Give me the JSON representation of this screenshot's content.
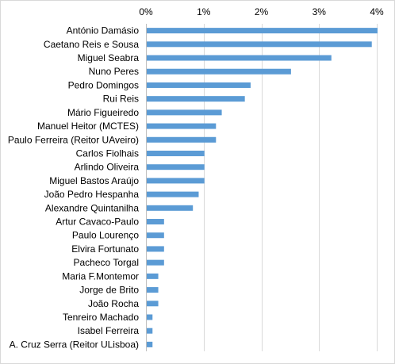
{
  "chart_data": {
    "type": "bar",
    "orientation": "horizontal",
    "title": "",
    "xlabel": "",
    "ylabel": "",
    "x_axis_position": "top",
    "xlim": [
      0,
      0.04
    ],
    "x_ticks": [
      0,
      0.01,
      0.02,
      0.03,
      0.04
    ],
    "x_tick_labels": [
      "0%",
      "1%",
      "2%",
      "3%",
      "4%"
    ],
    "grid": true,
    "legend": "none",
    "bar_color": "#5b9bd5",
    "categories": [
      "António Damásio",
      "Caetano Reis e Sousa",
      "Miguel Seabra",
      "Nuno Peres",
      "Pedro Domingos",
      "Rui Reis",
      "Mário Figueiredo",
      "Manuel Heitor (MCTES)",
      "Paulo Ferreira (Reitor UAveiro)",
      "Carlos Fiolhais",
      "Arlindo Oliveira",
      "Miguel Bastos Araújo",
      "João Pedro Hespanha",
      "Alexandre Quintanilha",
      "Artur Cavaco-Paulo",
      "Paulo Lourenço",
      "Elvira Fortunato",
      "Pacheco Torgal",
      "Maria F.Montemor",
      "Jorge de Brito",
      "João Rocha",
      "Tenreiro Machado",
      "Isabel Ferreira",
      "A. Cruz Serra (Reitor ULisboa)"
    ],
    "values": [
      0.04,
      0.039,
      0.032,
      0.025,
      0.018,
      0.017,
      0.013,
      0.012,
      0.012,
      0.01,
      0.01,
      0.01,
      0.009,
      0.008,
      0.003,
      0.003,
      0.003,
      0.003,
      0.002,
      0.002,
      0.002,
      0.001,
      0.001,
      0.001
    ]
  }
}
